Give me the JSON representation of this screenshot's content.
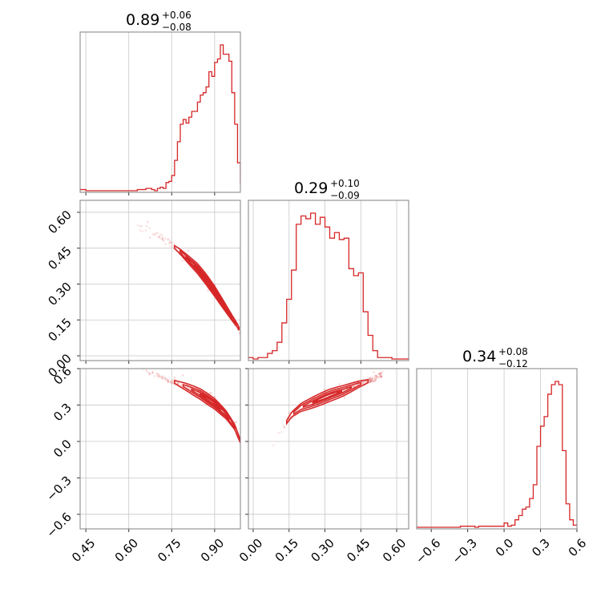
{
  "chart_data": {
    "type": "corner",
    "color": "#d62728",
    "grid": true,
    "parameters": [
      {
        "median": "0.89",
        "upper": "+0.06",
        "lower": "−0.08",
        "range": [
          0.43,
          0.99
        ],
        "ticks": [
          0.45,
          0.6,
          0.75,
          0.9
        ],
        "tick_labels": [
          "0.45",
          "0.60",
          "0.75",
          "0.90"
        ],
        "hist": {
          "x": [
            0.43,
            0.44,
            0.45,
            0.46,
            0.47,
            0.48,
            0.49,
            0.5,
            0.51,
            0.52,
            0.53,
            0.54,
            0.55,
            0.56,
            0.57,
            0.58,
            0.59,
            0.6,
            0.61,
            0.62,
            0.63,
            0.64,
            0.65,
            0.66,
            0.67,
            0.68,
            0.69,
            0.7,
            0.71,
            0.72,
            0.73,
            0.74,
            0.75,
            0.76,
            0.77,
            0.78,
            0.79,
            0.8,
            0.81,
            0.82,
            0.83,
            0.84,
            0.85,
            0.86,
            0.87,
            0.88,
            0.89,
            0.9,
            0.91,
            0.92,
            0.93,
            0.94,
            0.95,
            0.96,
            0.97,
            0.98,
            0.99
          ],
          "counts": [
            1,
            1,
            0,
            0,
            0,
            0,
            0,
            0,
            0,
            0,
            0,
            0,
            0,
            0,
            0,
            0,
            0,
            0,
            0,
            0,
            1,
            1,
            1,
            2,
            2,
            1,
            0,
            2,
            3,
            2,
            7,
            8,
            13,
            26,
            42,
            57,
            61,
            58,
            63,
            68,
            68,
            76,
            82,
            84,
            89,
            102,
            98,
            110,
            113,
            125,
            117,
            117,
            111,
            84,
            57,
            24,
            7
          ]
        }
      },
      {
        "median": "0.29",
        "upper": "+0.10",
        "lower": "−0.09",
        "range": [
          -0.02,
          0.65
        ],
        "ticks": [
          0.0,
          0.15,
          0.3,
          0.45,
          0.6
        ],
        "tick_labels": [
          "0.00",
          "0.15",
          "0.30",
          "0.45",
          "0.60"
        ],
        "hist": {
          "x": [
            -0.02,
            0.0,
            0.02,
            0.04,
            0.06,
            0.08,
            0.1,
            0.12,
            0.14,
            0.16,
            0.18,
            0.2,
            0.22,
            0.24,
            0.26,
            0.28,
            0.3,
            0.32,
            0.34,
            0.36,
            0.38,
            0.4,
            0.42,
            0.44,
            0.46,
            0.48,
            0.5,
            0.52,
            0.54,
            0.56,
            0.58,
            0.6,
            0.62,
            0.64
          ],
          "counts": [
            1,
            0,
            1,
            1,
            4,
            6,
            12,
            26,
            43,
            64,
            97,
            103,
            101,
            105,
            97,
            102,
            95,
            87,
            91,
            86,
            87,
            65,
            60,
            62,
            34,
            17,
            6,
            1,
            1,
            1,
            0,
            0,
            0,
            0
          ]
        }
      },
      {
        "median": "0.34",
        "upper": "+0.08",
        "lower": "−0.12",
        "range": [
          -0.72,
          0.6
        ],
        "ticks": [
          -0.6,
          -0.3,
          0.0,
          0.3,
          0.6
        ],
        "tick_labels": [
          "−0.6",
          "−0.3",
          "0.0",
          "0.3",
          "0.6"
        ],
        "hist": {
          "x": [
            -0.72,
            -0.69,
            -0.66,
            -0.63,
            -0.6,
            -0.57,
            -0.54,
            -0.51,
            -0.48,
            -0.45,
            -0.42,
            -0.39,
            -0.36,
            -0.33,
            -0.3,
            -0.27,
            -0.24,
            -0.21,
            -0.18,
            -0.15,
            -0.12,
            -0.09,
            -0.06,
            -0.03,
            0.0,
            0.03,
            0.06,
            0.09,
            0.12,
            0.15,
            0.18,
            0.21,
            0.24,
            0.27,
            0.3,
            0.33,
            0.36,
            0.39,
            0.42,
            0.45,
            0.48,
            0.51,
            0.54,
            0.57
          ],
          "counts": [
            0,
            0,
            0,
            0,
            0,
            0,
            0,
            0,
            0,
            0,
            0,
            0,
            1,
            1,
            1,
            1,
            0,
            1,
            1,
            1,
            1,
            1,
            1,
            1,
            4,
            1,
            2,
            7,
            11,
            17,
            19,
            27,
            40,
            76,
            95,
            104,
            125,
            134,
            137,
            134,
            72,
            22,
            7,
            2
          ]
        }
      }
    ],
    "pairs": [
      {
        "x_param": 0,
        "y_param": 1,
        "ridge": [
          [
            0.63,
            0.535
          ],
          [
            0.66,
            0.53
          ],
          [
            0.69,
            0.515
          ],
          [
            0.72,
            0.495
          ],
          [
            0.75,
            0.465
          ],
          [
            0.78,
            0.435
          ],
          [
            0.81,
            0.4
          ],
          [
            0.84,
            0.365
          ],
          [
            0.87,
            0.32
          ],
          [
            0.9,
            0.27
          ],
          [
            0.93,
            0.215
          ],
          [
            0.96,
            0.16
          ],
          [
            0.98,
            0.125
          ],
          [
            0.99,
            0.1
          ]
        ],
        "contours": [
          {
            "from": 0.76,
            "to": 0.985,
            "width": 0.022
          },
          {
            "from": 0.78,
            "to": 0.975,
            "width": 0.014
          },
          {
            "from": 0.8,
            "to": 0.96,
            "width": 0.008
          },
          {
            "from": 0.83,
            "to": 0.94,
            "width": 0.004
          }
        ]
      },
      {
        "x_param": 0,
        "y_param": 2,
        "ridge": [
          [
            0.65,
            0.6
          ],
          [
            0.7,
            0.54
          ],
          [
            0.75,
            0.5
          ],
          [
            0.8,
            0.45
          ],
          [
            0.85,
            0.39
          ],
          [
            0.9,
            0.31
          ],
          [
            0.94,
            0.22
          ],
          [
            0.97,
            0.12
          ],
          [
            0.99,
            0.0
          ]
        ],
        "contours": [
          {
            "from": 0.76,
            "to": 0.99,
            "width": 0.045
          },
          {
            "from": 0.79,
            "to": 0.97,
            "width": 0.03
          },
          {
            "from": 0.82,
            "to": 0.95,
            "width": 0.018
          },
          {
            "from": 0.85,
            "to": 0.92,
            "width": 0.008
          }
        ]
      },
      {
        "x_param": 1,
        "y_param": 2,
        "ridge": [
          [
            0.08,
            -0.05
          ],
          [
            0.12,
            0.1
          ],
          [
            0.16,
            0.22
          ],
          [
            0.2,
            0.28
          ],
          [
            0.26,
            0.33
          ],
          [
            0.32,
            0.38
          ],
          [
            0.38,
            0.42
          ],
          [
            0.44,
            0.47
          ],
          [
            0.5,
            0.51
          ],
          [
            0.54,
            0.55
          ]
        ],
        "contours": [
          {
            "from": 0.14,
            "to": 0.48,
            "width": 0.05
          },
          {
            "from": 0.17,
            "to": 0.45,
            "width": 0.034
          },
          {
            "from": 0.21,
            "to": 0.41,
            "width": 0.02
          },
          {
            "from": 0.25,
            "to": 0.37,
            "width": 0.01
          }
        ]
      }
    ]
  }
}
